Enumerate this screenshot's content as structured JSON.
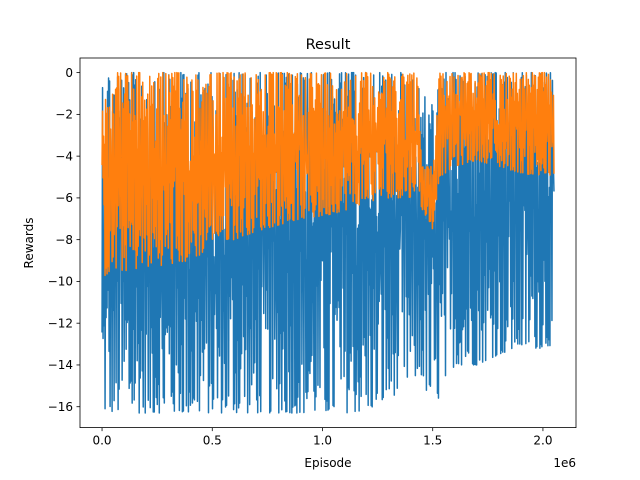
{
  "chart_data": {
    "type": "line",
    "title": "Result",
    "xlabel": "Episode",
    "ylabel": "Rewards",
    "x_offset_label": "1e6",
    "xlim": [
      -0.1,
      2.15
    ],
    "ylim": [
      -17,
      0.7
    ],
    "x_ticks": [
      0.0,
      0.5,
      1.0,
      1.5,
      2.0
    ],
    "x_tick_labels": [
      "0.0",
      "0.5",
      "1.0",
      "1.5",
      "2.0"
    ],
    "y_ticks": [
      0,
      -2,
      -4,
      -6,
      -8,
      -10,
      -12,
      -14,
      -16
    ],
    "y_tick_labels": [
      "0",
      "−2",
      "−4",
      "−6",
      "−8",
      "−10",
      "−12",
      "−14",
      "−16"
    ],
    "grid": false,
    "legend": "none",
    "series": [
      {
        "color": "#1f77b4",
        "envelope": {
          "x": [
            0.0,
            0.02,
            0.05,
            0.1,
            0.2,
            0.3,
            0.4,
            0.45,
            0.5,
            0.6,
            0.7,
            0.8,
            0.9,
            1.0,
            1.1,
            1.2,
            1.3,
            1.4,
            1.45,
            1.5,
            1.55,
            1.6,
            1.7,
            1.8,
            1.9,
            2.0,
            2.05
          ],
          "upper": [
            0.0,
            0.0,
            0.0,
            0.0,
            0.0,
            0.0,
            0.0,
            0.0,
            0.0,
            0.0,
            0.0,
            0.0,
            0.0,
            0.0,
            0.0,
            0.0,
            0.0,
            0.0,
            -1.0,
            -1.5,
            0.0,
            0.0,
            0.0,
            0.0,
            0.0,
            0.0,
            0.0
          ],
          "lower": [
            -16.3,
            -16.3,
            -16.3,
            -16.3,
            -16.3,
            -16.3,
            -16.3,
            -16.3,
            -16.3,
            -16.3,
            -16.3,
            -16.3,
            -16.3,
            -16.3,
            -16.3,
            -16.2,
            -15.7,
            -14.7,
            -14.5,
            -16.3,
            -15.0,
            -14.0,
            -14.0,
            -13.5,
            -13.2,
            -13.2,
            -13.0
          ]
        }
      },
      {
        "color": "#ff7f0e",
        "envelope": {
          "x": [
            0.0,
            0.05,
            0.1,
            0.2,
            0.3,
            0.4,
            0.45,
            0.5,
            0.6,
            0.7,
            0.8,
            0.9,
            1.0,
            1.1,
            1.2,
            1.3,
            1.4,
            1.43,
            1.45,
            1.5,
            1.53,
            1.6,
            1.7,
            1.8,
            1.9,
            2.0,
            2.05
          ],
          "upper": [
            0.0,
            0.0,
            0.0,
            0.0,
            0.0,
            0.0,
            0.0,
            0.0,
            0.0,
            0.0,
            0.0,
            0.0,
            0.0,
            0.0,
            0.0,
            0.0,
            0.0,
            0.0,
            -4.5,
            -4.5,
            0.0,
            0.0,
            0.0,
            0.0,
            0.0,
            0.0,
            0.0
          ],
          "lower": [
            -9.8,
            -9.5,
            -9.5,
            -9.3,
            -9.2,
            -9.0,
            -8.7,
            -8.0,
            -8.0,
            -7.6,
            -7.3,
            -7.0,
            -6.9,
            -6.6,
            -6.2,
            -6.0,
            -6.0,
            -5.4,
            -6.5,
            -7.5,
            -5.0,
            -4.5,
            -4.2,
            -4.5,
            -4.8,
            -5.0,
            -5.0
          ]
        }
      }
    ]
  }
}
